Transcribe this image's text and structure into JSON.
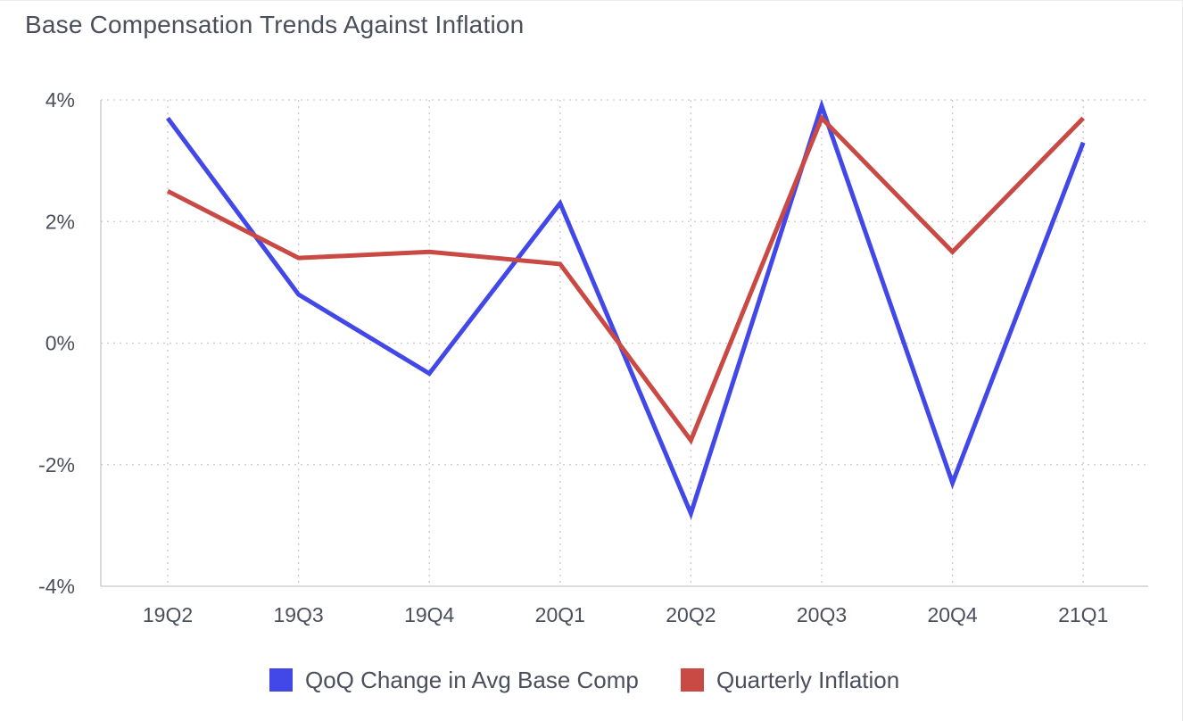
{
  "page": {
    "title": "Base Compensation Trends Against Inflation"
  },
  "chart_data": {
    "type": "line",
    "title": "Base Compensation Trends Against Inflation",
    "xlabel": "",
    "ylabel": "",
    "categories": [
      "19Q2",
      "19Q3",
      "19Q4",
      "20Q1",
      "20Q2",
      "20Q3",
      "20Q4",
      "21Q1"
    ],
    "ylim": [
      -4,
      4
    ],
    "yticks": [
      4,
      2,
      0,
      -2,
      -4
    ],
    "ytick_labels": [
      "4%",
      "2%",
      "0%",
      "-2%",
      "-4%"
    ],
    "grid": true,
    "legend_position": "bottom-center",
    "series": [
      {
        "name": "QoQ Change in Avg Base Comp",
        "color": "#4248e8",
        "values": [
          3.7,
          0.8,
          -0.5,
          2.3,
          -2.8,
          3.9,
          -2.3,
          3.3
        ]
      },
      {
        "name": "Quarterly Inflation",
        "color": "#c94a44",
        "values": [
          2.5,
          1.4,
          1.5,
          1.3,
          -1.6,
          3.7,
          1.5,
          3.7
        ]
      }
    ]
  }
}
